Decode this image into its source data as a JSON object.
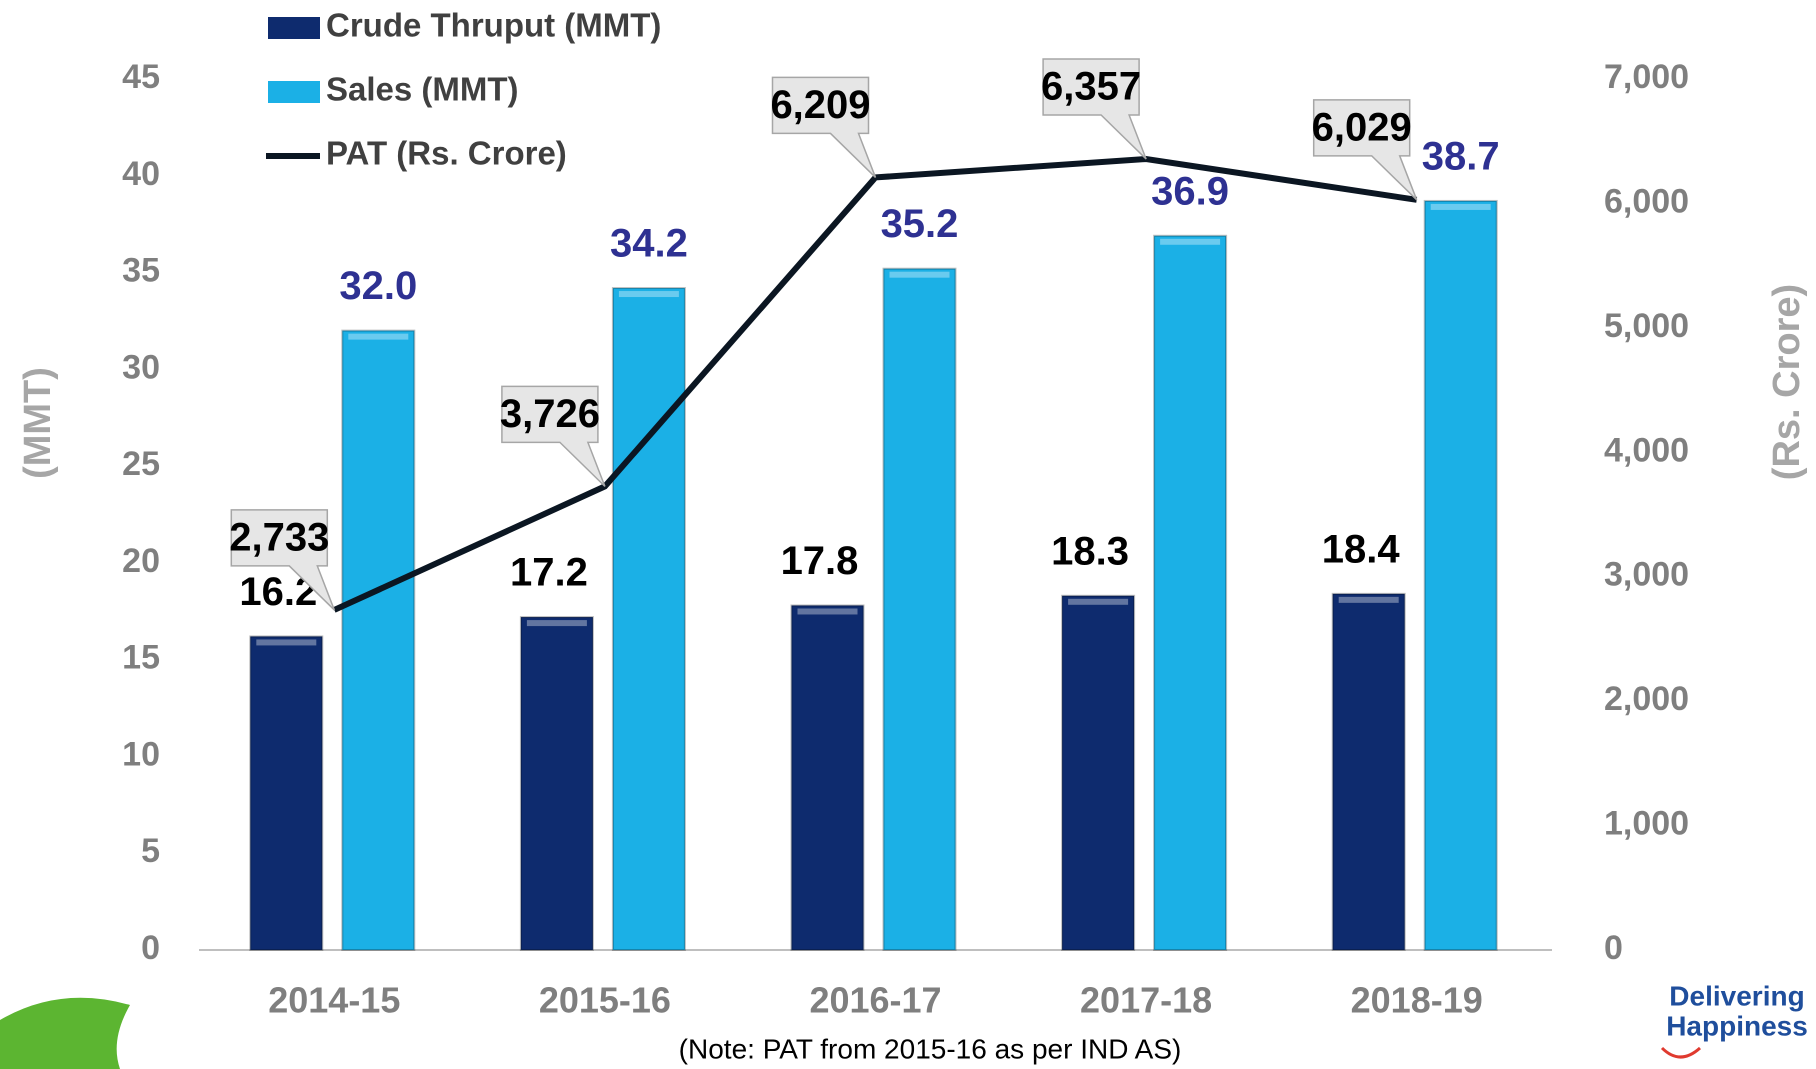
{
  "chart_data": {
    "type": "bar",
    "categories": [
      "2014-15",
      "2015-16",
      "2016-17",
      "2017-18",
      "2018-19"
    ],
    "series": [
      {
        "name": "Crude Thruput (MMT)",
        "color": "#0e2b6e",
        "values": [
          16.2,
          17.2,
          17.8,
          18.3,
          18.4
        ]
      },
      {
        "name": "Sales (MMT)",
        "color": "#1bb0e6",
        "values": [
          32.0,
          34.2,
          35.2,
          36.9,
          38.7
        ],
        "value_labels": [
          "32.0",
          "34.2",
          "35.2",
          "36.9",
          "38.7"
        ],
        "value_label_color": "#2e3192"
      },
      {
        "name": "PAT (Rs. Crore)",
        "type": "line",
        "axis": "y2",
        "color": "#0b1622",
        "values": [
          2733,
          3726,
          6209,
          6357,
          6029
        ],
        "value_labels": [
          "2,733",
          "3,726",
          "6,209",
          "6,357",
          "6,029"
        ]
      }
    ],
    "ylim": [
      0,
      45
    ],
    "yticks": [
      0,
      5,
      10,
      15,
      20,
      25,
      30,
      35,
      40,
      45
    ],
    "y2lim": [
      0,
      7000
    ],
    "y2ticks": [
      0,
      {
        "value": 1000,
        "label": "1,000"
      },
      {
        "value": 2000,
        "label": "2,000"
      },
      {
        "value": 3000,
        "label": "3,000"
      },
      {
        "value": 4000,
        "label": "4,000"
      },
      {
        "value": 5000,
        "label": "5,000"
      },
      {
        "value": 6000,
        "label": "6,000"
      },
      {
        "value": 7000,
        "label": "7,000"
      }
    ],
    "ylabel": "(MMT)",
    "y2label": "(Rs. Crore)",
    "note": "(Note: PAT from 2015-16 as per IND AS)"
  },
  "logo": {
    "lines": [
      "Delivering",
      "Happiness"
    ]
  }
}
